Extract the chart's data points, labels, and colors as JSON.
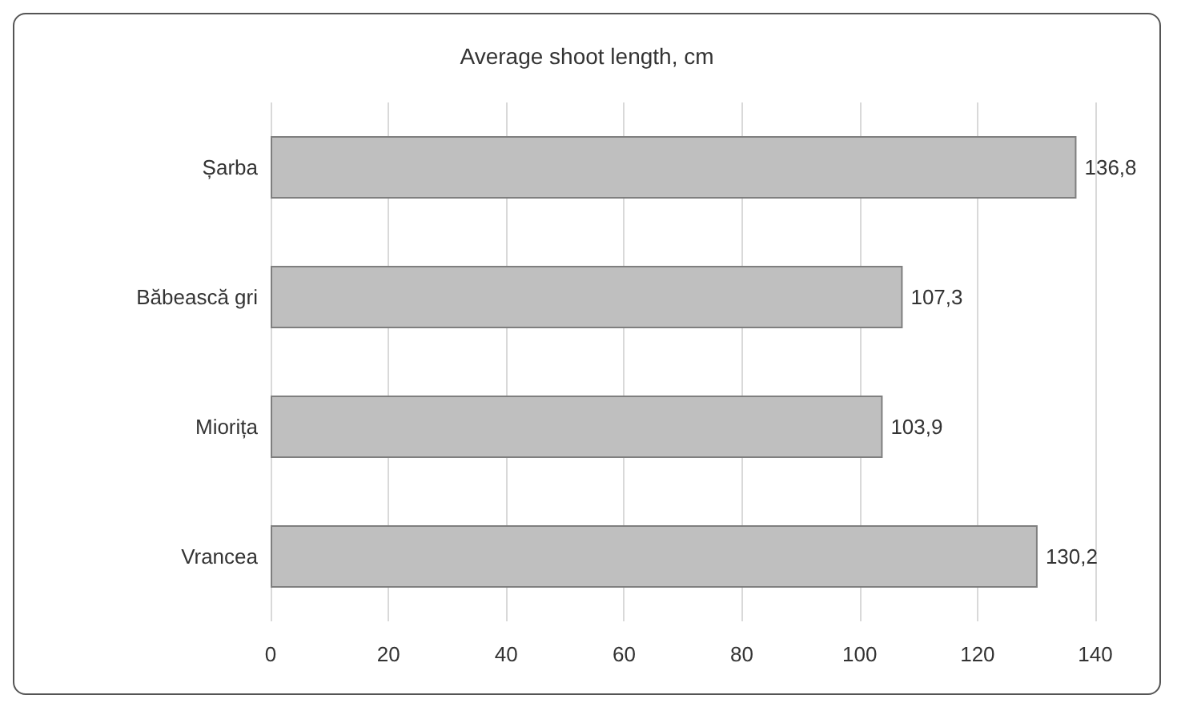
{
  "chart_data": {
    "type": "bar",
    "orientation": "horizontal",
    "title": "Average shoot length, cm",
    "categories": [
      "Șarba",
      "Băbească gri",
      "Miorița",
      "Vrancea"
    ],
    "values": [
      136.8,
      107.3,
      103.9,
      130.2
    ],
    "value_labels": [
      "136,8",
      "107,3",
      "103,9",
      "130,2"
    ],
    "color": "#bfbfbf",
    "xlim": [
      0,
      140
    ],
    "xticks": [
      0,
      20,
      40,
      60,
      80,
      100,
      120,
      140
    ],
    "grid": "x"
  }
}
